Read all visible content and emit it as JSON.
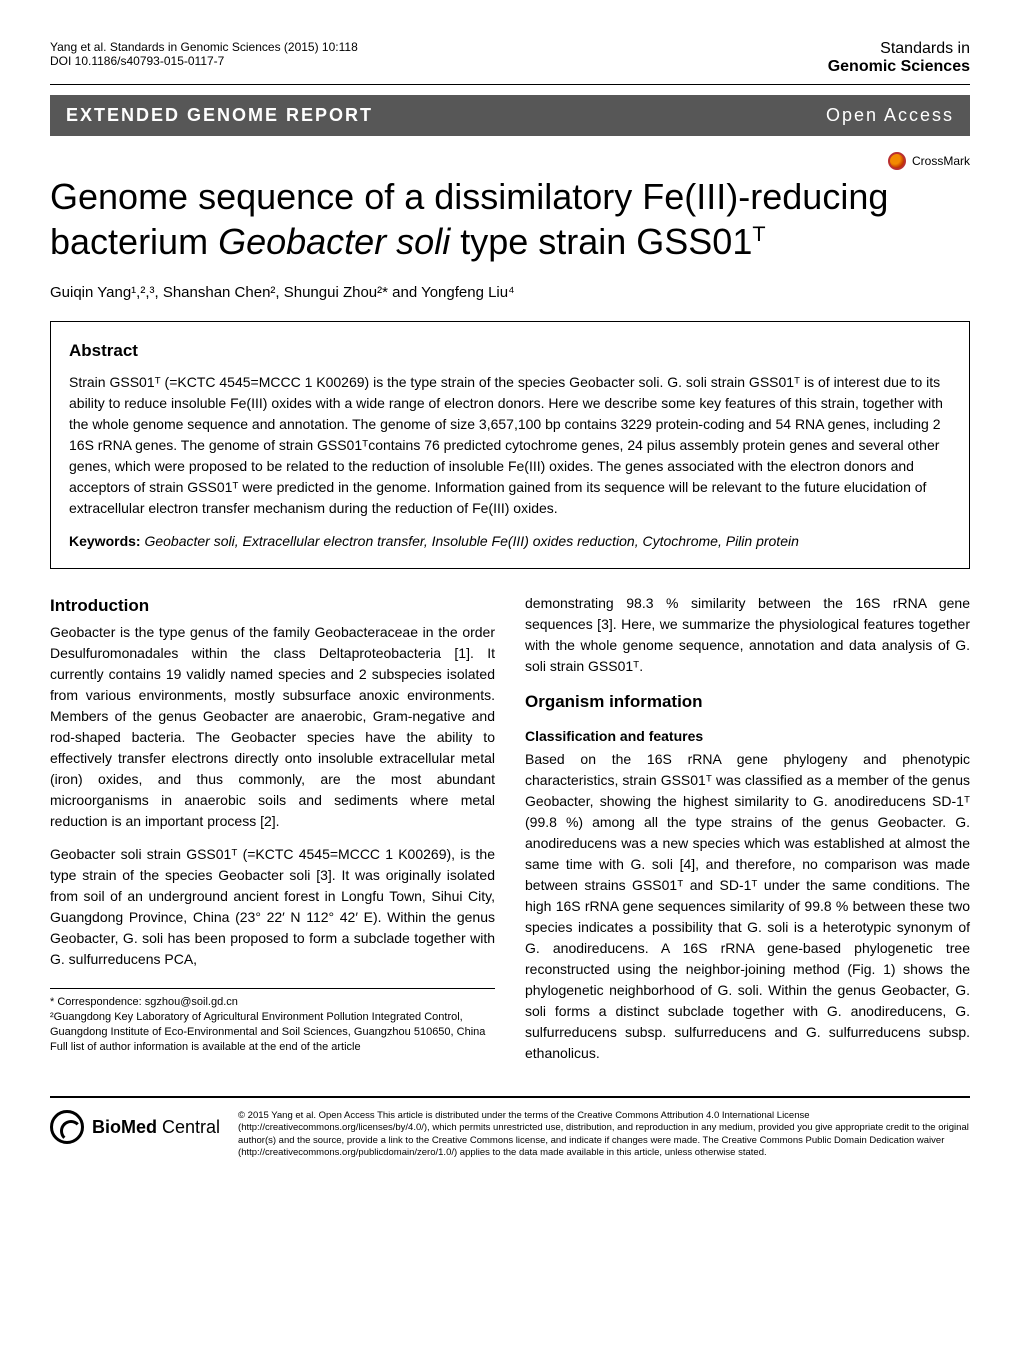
{
  "header": {
    "citation": "Yang et al. Standards in Genomic Sciences (2015) 10:118",
    "doi": "DOI 10.1186/s40793-015-0117-7",
    "journal_line1": "Standards in",
    "journal_line2": "Genomic Sciences"
  },
  "banner": {
    "left": "EXTENDED GENOME REPORT",
    "right": "Open Access",
    "bg_color": "#575757",
    "text_color": "#ffffff"
  },
  "crossmark": {
    "label": "CrossMark"
  },
  "title": {
    "pre": "Genome sequence of a dissimilatory Fe(III)-reducing bacterium ",
    "species": "Geobacter soli",
    "mid": " type strain GSS01",
    "sup": "T"
  },
  "authors": "Guiqin Yang¹,²,³, Shanshan Chen², Shungui Zhou²* and Yongfeng Liu⁴",
  "abstract": {
    "heading": "Abstract",
    "body": "Strain GSS01ᵀ (=KCTC 4545=MCCC 1 K00269) is the type strain of the species Geobacter soli. G. soli strain GSS01ᵀ is of interest due to its ability to reduce insoluble Fe(III) oxides with a wide range of electron donors. Here we describe some key features of this strain, together with the whole genome sequence and annotation. The genome of size 3,657,100 bp contains 3229 protein-coding and 54 RNA genes, including 2 16S rRNA genes. The genome of strain GSS01ᵀcontains 76 predicted cytochrome genes, 24 pilus assembly protein genes and several other genes, which were proposed to be related to the reduction of insoluble Fe(III) oxides. The genes associated with the electron donors and acceptors of strain GSS01ᵀ were predicted in the genome. Information gained from its sequence will be relevant to the future elucidation of extracellular electron transfer mechanism during the reduction of Fe(III) oxides.",
    "keywords_label": "Keywords:",
    "keywords": " Geobacter soli, Extracellular electron transfer, Insoluble Fe(III) oxides reduction, Cytochrome, Pilin protein"
  },
  "left_col": {
    "h_intro": "Introduction",
    "p1": "Geobacter is the type genus of the family Geobacteraceae in the order Desulfuromonadales within the class Deltaproteobacteria [1]. It currently contains 19 validly named species and 2 subspecies isolated from various environments, mostly subsurface anoxic environments. Members of the genus Geobacter are anaerobic, Gram-negative and rod-shaped bacteria. The Geobacter species have the ability to effectively transfer electrons directly onto insoluble extracellular metal (iron) oxides, and thus commonly, are the most abundant microorganisms in anaerobic soils and sediments where metal reduction is an important process [2].",
    "p2": "Geobacter soli strain GSS01ᵀ (=KCTC 4545=MCCC 1 K00269), is the type strain of the species Geobacter soli [3]. It was originally isolated from soil of an underground ancient forest in Longfu Town, Sihui City, Guangdong Province, China (23° 22′ N 112° 42′ E). Within the genus Geobacter, G. soli has been proposed to form a subclade together with G. sulfurreducens PCA,",
    "corr1": "* Correspondence: sgzhou@soil.gd.cn",
    "corr2": "²Guangdong Key Laboratory of Agricultural Environment Pollution Integrated Control, Guangdong Institute of Eco-Environmental and Soil Sciences, Guangzhou 510650, China",
    "corr3": "Full list of author information is available at the end of the article"
  },
  "right_col": {
    "p1": "demonstrating 98.3 % similarity between the 16S rRNA gene sequences [3]. Here, we summarize the physiological features together with the whole genome sequence, annotation and data analysis of G. soli strain GSS01ᵀ.",
    "h_org": "Organism information",
    "h_class": "Classification and features",
    "p2": "Based on the 16S rRNA gene phylogeny and phenotypic characteristics, strain GSS01ᵀ was classified as a member of the genus Geobacter, showing the highest similarity to G. anodireducens SD-1ᵀ (99.8 %) among all the type strains of the genus Geobacter. G. anodireducens was a new species which was established at almost the same time with G. soli [4], and therefore, no comparison was made between strains GSS01ᵀ and SD-1ᵀ under the same conditions. The high 16S rRNA gene sequences similarity of 99.8 % between these two species indicates a possibility that G. soli is a heterotypic synonym of G. anodireducens. A 16S rRNA gene-based phylogenetic tree reconstructed using the neighbor-joining method (Fig. 1) shows the phylogenetic neighborhood of G. soli. Within the genus Geobacter, G. soli forms a distinct subclade together with G. anodireducens, G. sulfurreducens subsp. sulfurreducens and G. sulfurreducens subsp. ethanolicus."
  },
  "footer": {
    "logo_bio": "BioMed",
    "logo_central": " Central",
    "license": "© 2015 Yang et al. Open Access This article is distributed under the terms of the Creative Commons Attribution 4.0 International License (http://creativecommons.org/licenses/by/4.0/), which permits unrestricted use, distribution, and reproduction in any medium, provided you give appropriate credit to the original author(s) and the source, provide a link to the Creative Commons license, and indicate if changes were made. The Creative Commons Public Domain Dedication waiver (http://creativecommons.org/publicdomain/zero/1.0/) applies to the data made available in this article, unless otherwise stated."
  },
  "styling": {
    "page_bg": "#ffffff",
    "text_color": "#000000",
    "title_fontsize": 36,
    "body_fontsize": 14,
    "abstract_border": "#000000"
  }
}
